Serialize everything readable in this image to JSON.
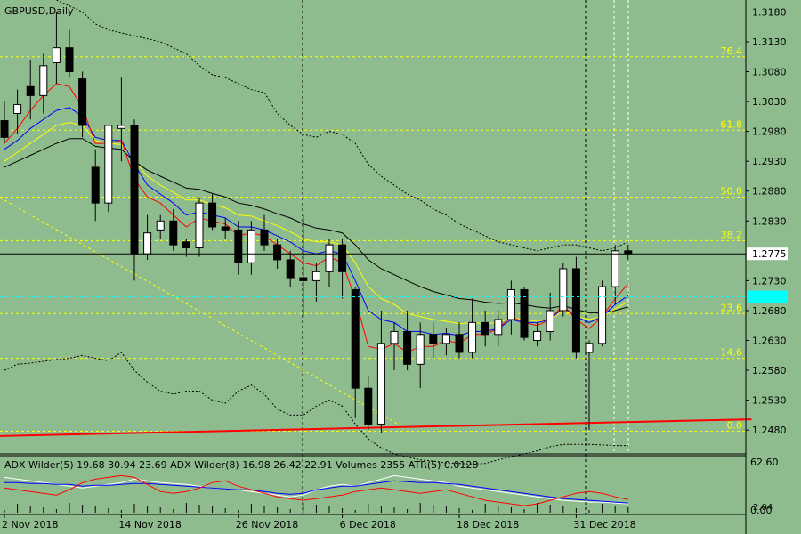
{
  "header": {
    "symbol_label": "GBPUSD,Daily"
  },
  "indicator": {
    "label": "ADX Wilder(5) 19.68 30.94 23.69 ADX Wilder(8) 16.98 26.42 22.91 Volumes 2355 ATR(5) 0.0128",
    "axis_top": "62.60",
    "axis_mid": "2.04",
    "axis_bottom": "0.00"
  },
  "colors": {
    "background": "#8fbc8f",
    "bull_candle": "#ffffff",
    "bear_candle": "#000000",
    "fib_lines": "#ffff00",
    "ema_red": "#ff0000",
    "ema_blue": "#0000ff",
    "ema_yellow": "#ffff00",
    "trend_line": "#ff0000",
    "price_tag_bg": "#ffffff",
    "cyan_tag": "#00ffff"
  },
  "chart_data": {
    "type": "candlestick",
    "y_range": [
      1.244,
      1.32
    ],
    "price_ticks": [
      "1.3180",
      "1.3130",
      "1.3080",
      "1.3030",
      "1.2980",
      "1.2930",
      "1.2880",
      "1.2830",
      "1.2775",
      "1.2730",
      "1.2680",
      "1.2630",
      "1.2580",
      "1.2530",
      "1.2480"
    ],
    "price_tick_values": [
      1.318,
      1.313,
      1.308,
      1.303,
      1.298,
      1.293,
      1.288,
      1.283,
      1.2775,
      1.273,
      1.268,
      1.263,
      1.258,
      1.253,
      1.248
    ],
    "current_price": 1.2775,
    "current_price_label": "1.2775",
    "cyan_tag_price": 1.2703,
    "fib_levels": [
      {
        "label": "76.4",
        "value": 1.3105
      },
      {
        "label": "61.8",
        "value": 1.2982
      },
      {
        "label": "50.0",
        "value": 1.287
      },
      {
        "label": "38.2",
        "value": 1.2797
      },
      {
        "label": "23.6",
        "value": 1.2675
      },
      {
        "label": "14.6",
        "value": 1.26
      },
      {
        "label": "0.0",
        "value": 1.2478
      }
    ],
    "date_labels": [
      "2 Nov 2018",
      "14 Nov 2018",
      "26 Nov 2018",
      "6 Dec 2018",
      "18 Dec 2018",
      "31 Dec 2018"
    ],
    "date_label_bars": [
      0,
      9,
      18,
      26,
      35,
      44
    ],
    "candles": [
      {
        "o": 1.2998,
        "h": 1.303,
        "l": 1.296,
        "c": 1.297
      },
      {
        "o": 1.301,
        "h": 1.305,
        "l": 1.2975,
        "c": 1.3025
      },
      {
        "o": 1.3055,
        "h": 1.31,
        "l": 1.3,
        "c": 1.304
      },
      {
        "o": 1.304,
        "h": 1.311,
        "l": 1.301,
        "c": 1.309
      },
      {
        "o": 1.3095,
        "h": 1.318,
        "l": 1.306,
        "c": 1.312
      },
      {
        "o": 1.312,
        "h": 1.315,
        "l": 1.307,
        "c": 1.308
      },
      {
        "o": 1.3068,
        "h": 1.308,
        "l": 1.297,
        "c": 1.299
      },
      {
        "o": 1.292,
        "h": 1.295,
        "l": 1.283,
        "c": 1.286
      },
      {
        "o": 1.286,
        "h": 1.299,
        "l": 1.2845,
        "c": 1.299
      },
      {
        "o": 1.2985,
        "h": 1.307,
        "l": 1.293,
        "c": 1.299
      },
      {
        "o": 1.299,
        "h": 1.3,
        "l": 1.273,
        "c": 1.2775
      },
      {
        "o": 1.2775,
        "h": 1.284,
        "l": 1.2765,
        "c": 1.281
      },
      {
        "o": 1.2815,
        "h": 1.284,
        "l": 1.28,
        "c": 1.283
      },
      {
        "o": 1.283,
        "h": 1.285,
        "l": 1.278,
        "c": 1.279
      },
      {
        "o": 1.2795,
        "h": 1.28,
        "l": 1.277,
        "c": 1.2785
      },
      {
        "o": 1.2785,
        "h": 1.287,
        "l": 1.277,
        "c": 1.286
      },
      {
        "o": 1.286,
        "h": 1.2875,
        "l": 1.2815,
        "c": 1.282
      },
      {
        "o": 1.282,
        "h": 1.2835,
        "l": 1.28,
        "c": 1.2815
      },
      {
        "o": 1.2815,
        "h": 1.283,
        "l": 1.274,
        "c": 1.276
      },
      {
        "o": 1.276,
        "h": 1.283,
        "l": 1.274,
        "c": 1.2815
      },
      {
        "o": 1.2815,
        "h": 1.284,
        "l": 1.278,
        "c": 1.279
      },
      {
        "o": 1.279,
        "h": 1.28,
        "l": 1.275,
        "c": 1.2765
      },
      {
        "o": 1.2765,
        "h": 1.278,
        "l": 1.272,
        "c": 1.2735
      },
      {
        "o": 1.2735,
        "h": 1.284,
        "l": 1.267,
        "c": 1.273
      },
      {
        "o": 1.273,
        "h": 1.276,
        "l": 1.2695,
        "c": 1.2745
      },
      {
        "o": 1.2745,
        "h": 1.28,
        "l": 1.272,
        "c": 1.279
      },
      {
        "o": 1.279,
        "h": 1.28,
        "l": 1.27,
        "c": 1.2745
      },
      {
        "o": 1.2715,
        "h": 1.272,
        "l": 1.25,
        "c": 1.255
      },
      {
        "o": 1.255,
        "h": 1.257,
        "l": 1.248,
        "c": 1.249
      },
      {
        "o": 1.249,
        "h": 1.268,
        "l": 1.2475,
        "c": 1.2625
      },
      {
        "o": 1.2625,
        "h": 1.266,
        "l": 1.258,
        "c": 1.2645
      },
      {
        "o": 1.2645,
        "h": 1.268,
        "l": 1.258,
        "c": 1.259
      },
      {
        "o": 1.259,
        "h": 1.266,
        "l": 1.255,
        "c": 1.264
      },
      {
        "o": 1.264,
        "h": 1.266,
        "l": 1.26,
        "c": 1.2625
      },
      {
        "o": 1.2625,
        "h": 1.265,
        "l": 1.2605,
        "c": 1.264
      },
      {
        "o": 1.264,
        "h": 1.266,
        "l": 1.26,
        "c": 1.261
      },
      {
        "o": 1.261,
        "h": 1.27,
        "l": 1.26,
        "c": 1.266
      },
      {
        "o": 1.266,
        "h": 1.268,
        "l": 1.262,
        "c": 1.264
      },
      {
        "o": 1.264,
        "h": 1.268,
        "l": 1.262,
        "c": 1.2665
      },
      {
        "o": 1.2665,
        "h": 1.273,
        "l": 1.264,
        "c": 1.2715
      },
      {
        "o": 1.2715,
        "h": 1.272,
        "l": 1.263,
        "c": 1.2635
      },
      {
        "o": 1.263,
        "h": 1.266,
        "l": 1.262,
        "c": 1.2645
      },
      {
        "o": 1.2645,
        "h": 1.271,
        "l": 1.263,
        "c": 1.268
      },
      {
        "o": 1.268,
        "h": 1.276,
        "l": 1.267,
        "c": 1.275
      },
      {
        "o": 1.275,
        "h": 1.277,
        "l": 1.26,
        "c": 1.261
      },
      {
        "o": 1.261,
        "h": 1.263,
        "l": 1.248,
        "c": 1.2625
      },
      {
        "o": 1.2625,
        "h": 1.273,
        "l": 1.262,
        "c": 1.272
      },
      {
        "o": 1.272,
        "h": 1.279,
        "l": 1.269,
        "c": 1.278
      },
      {
        "o": 1.278,
        "h": 1.279,
        "l": 1.2765,
        "c": 1.2775
      }
    ],
    "ema_fast": [
      1.296,
      1.2985,
      1.3015,
      1.304,
      1.306,
      1.3055,
      1.302,
      1.296,
      1.296,
      1.2965,
      1.29,
      1.287,
      1.286,
      1.284,
      1.282,
      1.2835,
      1.283,
      1.2825,
      1.2805,
      1.281,
      1.2805,
      1.279,
      1.2775,
      1.276,
      1.2755,
      1.277,
      1.276,
      1.27,
      1.262,
      1.2615,
      1.2625,
      1.261,
      1.262,
      1.262,
      1.263,
      1.2625,
      1.264,
      1.264,
      1.265,
      1.267,
      1.266,
      1.2655,
      1.2665,
      1.269,
      1.2665,
      1.265,
      1.267,
      1.27,
      1.2725
    ],
    "ema_mid": [
      1.295,
      1.2965,
      1.2985,
      1.3,
      1.3015,
      1.302,
      1.3005,
      1.297,
      1.2965,
      1.2965,
      1.2925,
      1.289,
      1.2875,
      1.286,
      1.284,
      1.2845,
      1.284,
      1.2835,
      1.282,
      1.282,
      1.2815,
      1.2805,
      1.2795,
      1.278,
      1.2775,
      1.278,
      1.2775,
      1.273,
      1.268,
      1.2665,
      1.266,
      1.2645,
      1.2645,
      1.264,
      1.2642,
      1.2638,
      1.2645,
      1.2645,
      1.265,
      1.2665,
      1.266,
      1.266,
      1.2665,
      1.2685,
      1.267,
      1.266,
      1.267,
      1.269,
      1.2705
    ],
    "ema_slow": [
      1.293,
      1.2945,
      1.296,
      1.2975,
      1.299,
      1.2995,
      1.299,
      1.2965,
      1.296,
      1.2958,
      1.293,
      1.2905,
      1.289,
      1.2878,
      1.2865,
      1.2865,
      1.2858,
      1.2852,
      1.284,
      1.2838,
      1.283,
      1.2822,
      1.2812,
      1.28,
      1.2795,
      1.2795,
      1.279,
      1.276,
      1.272,
      1.27,
      1.269,
      1.2675,
      1.267,
      1.2665,
      1.2662,
      1.2658,
      1.266,
      1.2658,
      1.266,
      1.2668,
      1.2665,
      1.2662,
      1.2664,
      1.268,
      1.267,
      1.2665,
      1.267,
      1.2683,
      1.2695
    ],
    "ema_black": [
      1.292,
      1.293,
      1.294,
      1.295,
      1.296,
      1.2968,
      1.2968,
      1.2955,
      1.2952,
      1.295,
      1.293,
      1.2915,
      1.2905,
      1.2895,
      1.2885,
      1.2883,
      1.2876,
      1.287,
      1.286,
      1.2856,
      1.285,
      1.2842,
      1.2835,
      1.2825,
      1.2818,
      1.2815,
      1.281,
      1.279,
      1.2765,
      1.275,
      1.274,
      1.273,
      1.272,
      1.2712,
      1.2706,
      1.27,
      1.2698,
      1.2694,
      1.2692,
      1.2693,
      1.269,
      1.2686,
      1.2684,
      1.2688,
      1.2682,
      1.2676,
      1.2676,
      1.268,
      1.2686
    ],
    "band_upper": [
      1.326,
      1.324,
      1.323,
      1.321,
      1.32,
      1.319,
      1.318,
      1.316,
      1.315,
      1.3145,
      1.314,
      1.3135,
      1.313,
      1.312,
      1.311,
      1.309,
      1.3075,
      1.307,
      1.306,
      1.305,
      1.3045,
      1.301,
      1.299,
      1.2975,
      1.297,
      1.298,
      1.2975,
      1.296,
      1.2925,
      1.2905,
      1.289,
      1.2875,
      1.2865,
      1.285,
      1.284,
      1.2825,
      1.2815,
      1.2805,
      1.2795,
      1.279,
      1.2785,
      1.278,
      1.2785,
      1.279,
      1.279,
      1.2785,
      1.278,
      1.2785,
      1.2795
    ],
    "band_lower": [
      1.258,
      1.259,
      1.2592,
      1.2595,
      1.2598,
      1.26,
      1.2605,
      1.26,
      1.2596,
      1.261,
      1.258,
      1.256,
      1.2545,
      1.254,
      1.2545,
      1.2545,
      1.253,
      1.2525,
      1.2545,
      1.2555,
      1.254,
      1.2515,
      1.2505,
      1.2505,
      1.252,
      1.253,
      1.252,
      1.249,
      1.2465,
      1.245,
      1.244,
      1.2435,
      1.243,
      1.2428,
      1.2425,
      1.2424,
      1.2423,
      1.2424,
      1.243,
      1.2435,
      1.244,
      1.2445,
      1.2452,
      1.2456,
      1.2456,
      1.2456,
      1.2455,
      1.2454,
      1.2454
    ],
    "trend_line": {
      "start": 1.247,
      "end": 1.2498,
      "end_bar": 57.5
    },
    "indicator_series": {
      "white": [
        40,
        38,
        36,
        34,
        32,
        30,
        28,
        30,
        32,
        34,
        38,
        36,
        34,
        33,
        32,
        30,
        28,
        27,
        26,
        24,
        22,
        20,
        18,
        20,
        26,
        30,
        32,
        30,
        34,
        38,
        42,
        40,
        38,
        36,
        34,
        30,
        28,
        26,
        24,
        22,
        20,
        18,
        16,
        14,
        13,
        12,
        12,
        11,
        10
      ],
      "blue": [
        34,
        34,
        33,
        33,
        32,
        32,
        30,
        31,
        31,
        32,
        33,
        33,
        32,
        31,
        30,
        29,
        28,
        27,
        26,
        26,
        24,
        22,
        21,
        22,
        26,
        28,
        30,
        30,
        32,
        34,
        36,
        35,
        34,
        34,
        33,
        32,
        30,
        28,
        26,
        24,
        22,
        20,
        18,
        16,
        15,
        14,
        13,
        12,
        11
      ],
      "red": [
        28,
        26,
        24,
        22,
        20,
        26,
        34,
        38,
        40,
        42,
        40,
        32,
        24,
        22,
        24,
        28,
        34,
        36,
        30,
        26,
        22,
        18,
        16,
        14,
        16,
        18,
        20,
        24,
        26,
        28,
        26,
        24,
        22,
        24,
        26,
        22,
        18,
        14,
        12,
        10,
        8,
        10,
        14,
        18,
        22,
        24,
        22,
        18,
        15
      ]
    }
  }
}
